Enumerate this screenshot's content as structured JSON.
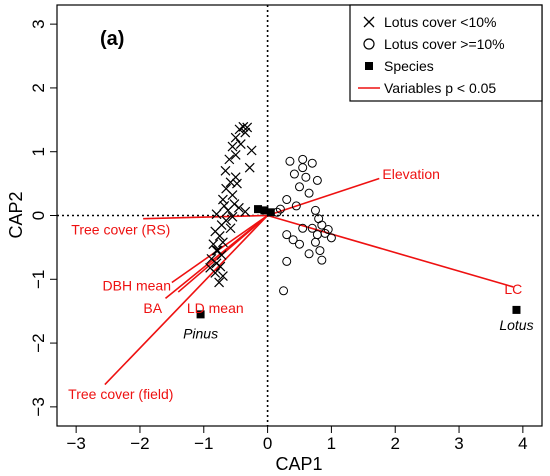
{
  "chart_data": {
    "type": "scatter",
    "panel_label": "(a)",
    "xlabel": "CAP1",
    "ylabel": "CAP2",
    "xlim": [
      -3.3,
      4.3
    ],
    "ylim": [
      -3.3,
      3.3
    ],
    "xticks": [
      -3,
      -2,
      -1,
      0,
      1,
      2,
      3,
      4
    ],
    "yticks": [
      -3,
      -2,
      -1,
      0,
      1,
      2,
      3
    ],
    "reference_lines": {
      "x": 0,
      "y": 0,
      "style": "dotted"
    },
    "legend": {
      "position": "top-right",
      "items": [
        {
          "symbol": "cross",
          "label": "Lotus cover <10%"
        },
        {
          "symbol": "circle",
          "label": "Lotus cover >=10%"
        },
        {
          "symbol": "square",
          "label": "Species"
        },
        {
          "symbol": "line",
          "label": "Variables p < 0.05",
          "color": "#ee1111"
        }
      ]
    },
    "series": [
      {
        "name": "Lotus cover <10%",
        "marker": "cross",
        "points": [
          [
            -0.38,
            1.39
          ],
          [
            -0.32,
            1.38
          ],
          [
            -0.44,
            1.35
          ],
          [
            -0.35,
            1.3
          ],
          [
            -0.5,
            1.22
          ],
          [
            -0.42,
            1.12
          ],
          [
            -0.55,
            1.08
          ],
          [
            -0.25,
            1.02
          ],
          [
            -0.5,
            0.95
          ],
          [
            -0.6,
            0.88
          ],
          [
            -0.28,
            0.75
          ],
          [
            -0.66,
            0.7
          ],
          [
            -0.5,
            0.6
          ],
          [
            -0.58,
            0.52
          ],
          [
            -0.65,
            0.42
          ],
          [
            -0.48,
            0.5
          ],
          [
            -0.55,
            0.32
          ],
          [
            -0.7,
            0.25
          ],
          [
            -0.52,
            0.18
          ],
          [
            -0.68,
            0.15
          ],
          [
            -0.45,
            0.12
          ],
          [
            -0.62,
            0.08
          ],
          [
            -0.35,
            0.06
          ],
          [
            -0.8,
            0.02
          ],
          [
            -0.55,
            -0.02
          ],
          [
            -0.65,
            -0.08
          ],
          [
            -0.72,
            -0.15
          ],
          [
            -0.58,
            -0.2
          ],
          [
            -0.82,
            -0.25
          ],
          [
            -0.75,
            -0.32
          ],
          [
            -0.7,
            -0.42
          ],
          [
            -0.85,
            -0.45
          ],
          [
            -0.78,
            -0.55
          ],
          [
            -0.72,
            -0.62
          ],
          [
            -0.88,
            -0.68
          ],
          [
            -0.8,
            -0.75
          ],
          [
            -0.74,
            -0.8
          ],
          [
            -0.9,
            -0.82
          ],
          [
            -0.82,
            -0.9
          ],
          [
            -0.7,
            -0.95
          ],
          [
            -0.76,
            -1.05
          ],
          [
            -0.8,
            -0.55
          ]
        ]
      },
      {
        "name": "Lotus cover >=10%",
        "marker": "circle",
        "points": [
          [
            0.55,
            0.88
          ],
          [
            0.35,
            0.85
          ],
          [
            0.7,
            0.82
          ],
          [
            0.55,
            0.75
          ],
          [
            0.42,
            0.65
          ],
          [
            0.6,
            0.6
          ],
          [
            0.78,
            0.55
          ],
          [
            0.5,
            0.45
          ],
          [
            0.65,
            0.35
          ],
          [
            0.3,
            0.25
          ],
          [
            0.45,
            0.15
          ],
          [
            0.2,
            0.1
          ],
          [
            0.15,
            0.05
          ],
          [
            0.75,
            0.08
          ],
          [
            0.8,
            -0.05
          ],
          [
            0.85,
            -0.15
          ],
          [
            0.7,
            -0.2
          ],
          [
            0.9,
            -0.28
          ],
          [
            0.78,
            -0.3
          ],
          [
            0.75,
            -0.42
          ],
          [
            1.0,
            -0.35
          ],
          [
            0.5,
            -0.45
          ],
          [
            0.82,
            -0.55
          ],
          [
            0.65,
            -0.6
          ],
          [
            0.3,
            -0.72
          ],
          [
            0.85,
            -0.7
          ],
          [
            0.4,
            -0.38
          ],
          [
            0.25,
            -1.18
          ],
          [
            0.95,
            -0.22
          ],
          [
            0.55,
            -0.2
          ],
          [
            0.3,
            -0.3
          ]
        ]
      },
      {
        "name": "Species",
        "marker": "square",
        "points": [
          [
            -1.05,
            -1.55
          ],
          [
            3.9,
            -1.48
          ],
          [
            -0.15,
            0.1
          ],
          [
            -0.05,
            0.08
          ],
          [
            0.05,
            0.05
          ]
        ],
        "labels": [
          {
            "text": "Pinus",
            "x": -1.05,
            "y": -1.85
          },
          {
            "text": "Lotus",
            "x": 3.9,
            "y": -1.72
          }
        ]
      }
    ],
    "variables": {
      "color": "#ee1111",
      "arrows": [
        {
          "name": "Elevation",
          "end": [
            1.75,
            0.58
          ],
          "label": "Elevation",
          "label_at": [
            2.25,
            0.65
          ]
        },
        {
          "name": "LC",
          "end": [
            3.85,
            -1.12
          ],
          "label": "LC",
          "label_at": [
            3.85,
            -1.15
          ]
        },
        {
          "name": "Tree cover (RS)",
          "end": [
            -1.95,
            -0.05
          ],
          "label": "Tree cover (RS)",
          "label_at": [
            -2.3,
            -0.22
          ]
        },
        {
          "name": "DBH mean",
          "end": [
            -1.5,
            -1.05
          ],
          "label": "DBH mean",
          "label_at": [
            -2.05,
            -1.1
          ]
        },
        {
          "name": "BA",
          "end": [
            -1.6,
            -1.3
          ],
          "label": "BA",
          "label_at": [
            -1.8,
            -1.45
          ]
        },
        {
          "name": "LD mean",
          "end": [
            -1.4,
            -1.2
          ],
          "label": "LD mean",
          "label_at": [
            -0.82,
            -1.45
          ]
        },
        {
          "name": "Tree cover (field)",
          "end": [
            -2.55,
            -2.65
          ],
          "label": "Tree cover (field)",
          "label_at": [
            -2.3,
            -2.8
          ]
        }
      ]
    }
  }
}
